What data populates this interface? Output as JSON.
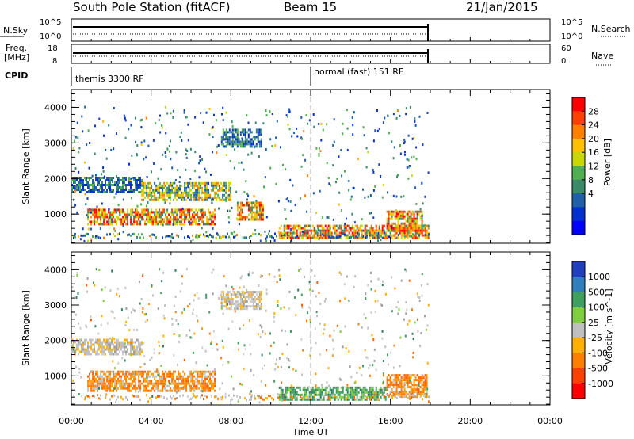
{
  "header": {
    "station": "South Pole Station (fitACF)",
    "beam": "Beam 15",
    "date": "21/Jan/2015"
  },
  "panels": {
    "nsky": {
      "left_label": "N.Sky",
      "right_label": "N.Search",
      "left_ticks": [
        "10^5",
        "10^0"
      ],
      "right_ticks": [
        "10^5",
        "10^0"
      ]
    },
    "freq": {
      "left_label_1": "Freq.",
      "left_label_2": "[MHz]",
      "left_ticks": [
        "18",
        "8"
      ],
      "right_label": "Nave",
      "right_ticks": [
        "60",
        "0"
      ]
    },
    "cpid": {
      "label": "CPID",
      "modes": [
        {
          "name": "themis 3300 RF",
          "start_hour": 0
        },
        {
          "name": "normal (fast) 151 RF",
          "start_hour": 12
        }
      ]
    }
  },
  "power_colorbar": {
    "label": "Power [dB]",
    "ticks": [
      "28",
      "24",
      "20",
      "16",
      "12",
      "8",
      "4"
    ],
    "colors": [
      "#ff0000",
      "#ff4000",
      "#ff8000",
      "#ffc000",
      "#c8d800",
      "#50b050",
      "#3a8a6a",
      "#2060a8",
      "#0030d0",
      "#0000ff"
    ]
  },
  "velocity_colorbar": {
    "label": "Velocity [m s^-1]",
    "ticks": [
      "1000",
      "500",
      "100",
      "25",
      "-25",
      "-100",
      "-500",
      "-1000"
    ],
    "colors": [
      "#1f3fbf",
      "#2f7fbf",
      "#3f9f5f",
      "#7fcf3f",
      "#c0c0c0",
      "#ffb000",
      "#ff8000",
      "#ff4000",
      "#ff0000"
    ]
  },
  "axes": {
    "ylabel": "Slant Range [km]",
    "xlabel": "Time UT",
    "y_ticks": [
      "4000",
      "3000",
      "2000",
      "1000"
    ],
    "x_ticks": [
      "00:00",
      "04:00",
      "08:00",
      "12:00",
      "16:00",
      "20:00",
      "00:00"
    ]
  },
  "chart_data": [
    {
      "type": "heatmap",
      "name_field": "Power",
      "xlabel": "Time UT",
      "ylabel": "Slant Range [km]",
      "xlim": [
        0,
        24
      ],
      "ylim": [
        180,
        4500
      ],
      "data_end_hour": 17.9,
      "features": [
        {
          "t": [
            0.8,
            7.2
          ],
          "r": [
            700,
            1150
          ],
          "level": "high"
        },
        {
          "t": [
            0.0,
            3.5
          ],
          "r": [
            1600,
            2050
          ],
          "level": "low"
        },
        {
          "t": [
            3.5,
            8.0
          ],
          "r": [
            1400,
            1900
          ],
          "level": "mid"
        },
        {
          "t": [
            7.5,
            9.5
          ],
          "r": [
            2900,
            3400
          ],
          "level": "low"
        },
        {
          "t": [
            8.3,
            9.6
          ],
          "r": [
            850,
            1350
          ],
          "level": "high"
        },
        {
          "t": [
            10.4,
            17.9
          ],
          "r": [
            350,
            700
          ],
          "level": "high"
        },
        {
          "t": [
            15.8,
            17.6
          ],
          "r": [
            500,
            1100
          ],
          "level": "high"
        }
      ]
    },
    {
      "type": "heatmap",
      "name_field": "Velocity",
      "xlabel": "Time UT",
      "ylabel": "Slant Range [km]",
      "xlim": [
        0,
        24
      ],
      "ylim": [
        180,
        4500
      ],
      "data_end_hour": 17.9,
      "features": [
        {
          "t": [
            0.8,
            7.2
          ],
          "r": [
            600,
            1150
          ],
          "velocity": -300
        },
        {
          "t": [
            0.0,
            3.5
          ],
          "r": [
            1600,
            2050
          ],
          "velocity": 0
        },
        {
          "t": [
            7.5,
            9.5
          ],
          "r": [
            2900,
            3400
          ],
          "velocity": 0
        },
        {
          "t": [
            10.4,
            15.8
          ],
          "r": [
            350,
            700
          ],
          "velocity": 200
        },
        {
          "t": [
            15.8,
            17.8
          ],
          "r": [
            400,
            1050
          ],
          "velocity": -150
        }
      ]
    }
  ]
}
